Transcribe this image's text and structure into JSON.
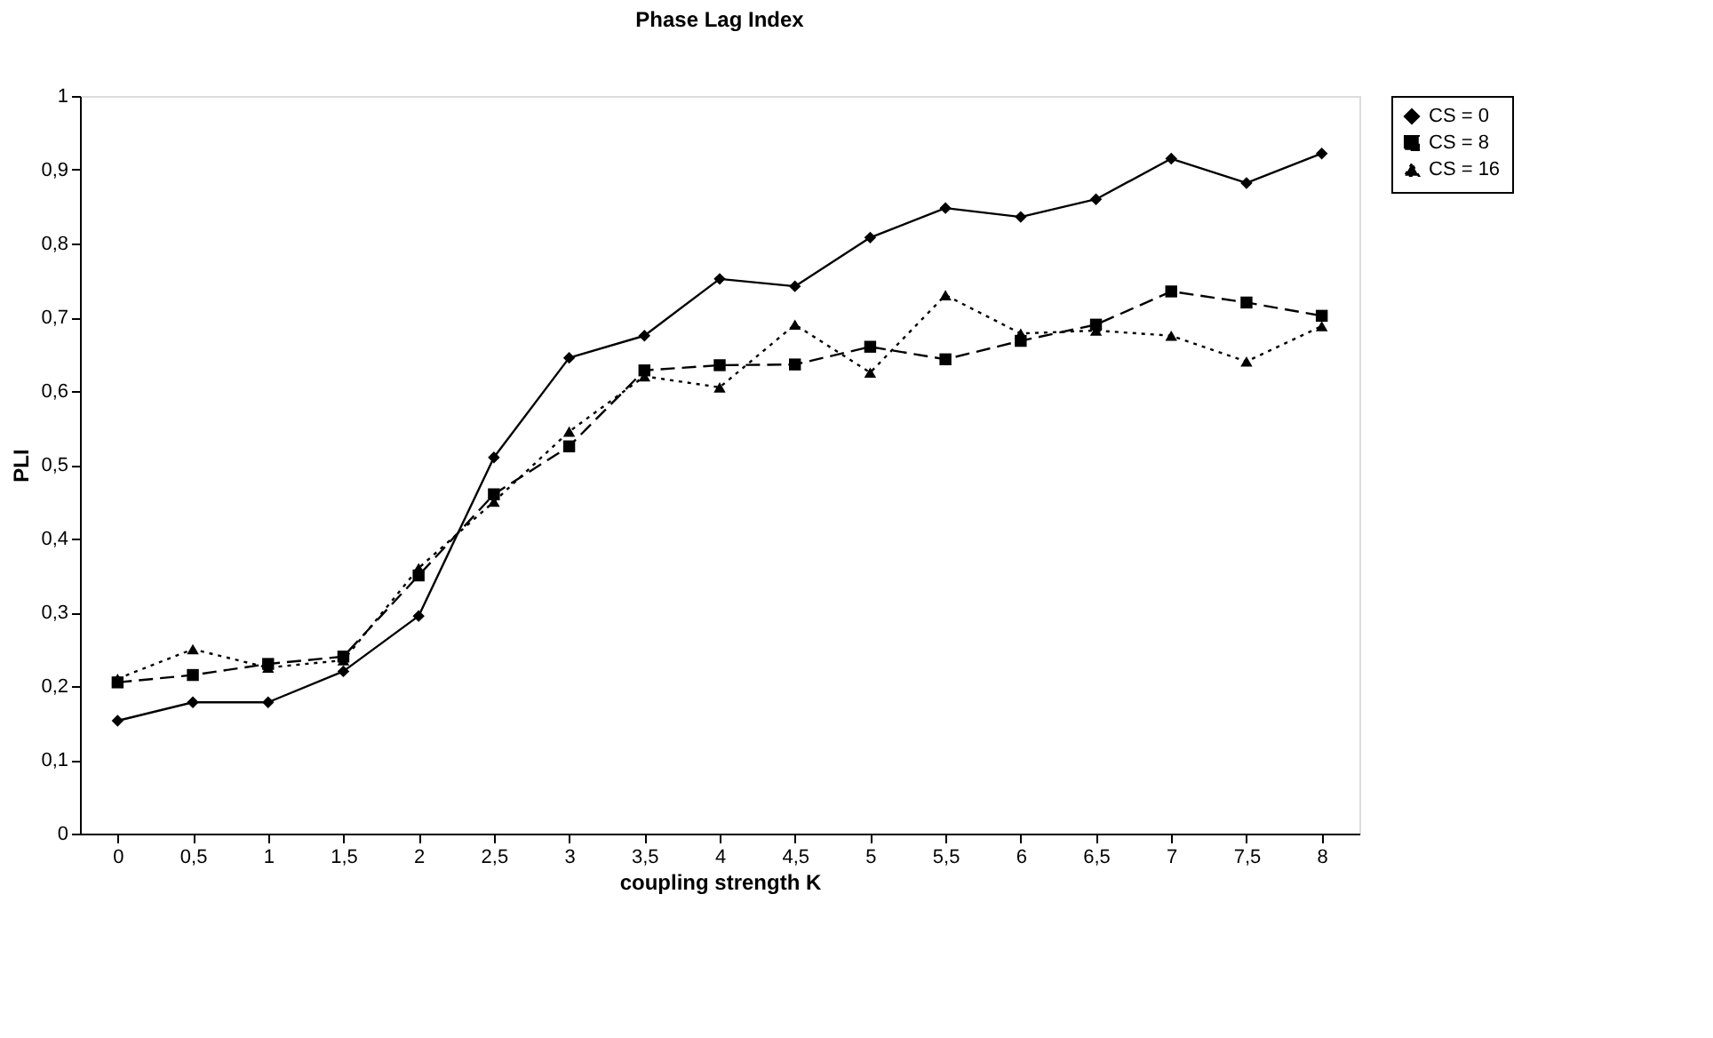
{
  "chart_data": {
    "type": "line",
    "title": "Phase Lag Index",
    "xlabel": "coupling strength K",
    "ylabel": "PLI",
    "categories": [
      "0",
      "0,5",
      "1",
      "1,5",
      "2",
      "2,5",
      "3",
      "3,5",
      "4",
      "4,5",
      "5",
      "5,5",
      "6",
      "6,5",
      "7",
      "7,5",
      "8"
    ],
    "series": [
      {
        "name": "CS = 0",
        "color": "#000000",
        "marker": "diamond",
        "line_style": "solid",
        "values": [
          0.153,
          0.178,
          0.178,
          0.22,
          0.295,
          0.51,
          0.645,
          0.675,
          0.752,
          0.742,
          0.808,
          0.848,
          0.836,
          0.86,
          0.915,
          0.882,
          0.922
        ]
      },
      {
        "name": "CS = 8",
        "color": "#000000",
        "marker": "square",
        "line_style": "dashed",
        "values": [
          0.205,
          0.215,
          0.23,
          0.24,
          0.35,
          0.46,
          0.525,
          0.628,
          0.635,
          0.636,
          0.66,
          0.643,
          0.668,
          0.69,
          0.735,
          0.72,
          0.702
        ]
      },
      {
        "name": "CS = 16",
        "color": "#000000",
        "marker": "triangle",
        "line_style": "dotted",
        "values": [
          0.21,
          0.25,
          0.225,
          0.235,
          0.36,
          0.45,
          0.545,
          0.62,
          0.605,
          0.69,
          0.625,
          0.73,
          0.678,
          0.682,
          0.675,
          0.64,
          0.688
        ]
      }
    ],
    "ylim": [
      0,
      1
    ],
    "yticks": [
      0,
      {
        "value": 0.1,
        "label": "0,1"
      },
      {
        "value": 0.2,
        "label": "0,2"
      },
      {
        "value": 0.3,
        "label": "0,3"
      },
      {
        "value": 0.4,
        "label": "0,4"
      },
      {
        "value": 0.5,
        "label": "0,5"
      },
      {
        "value": 0.6,
        "label": "0,6"
      },
      {
        "value": 0.7,
        "label": "0,7"
      },
      {
        "value": 0.8,
        "label": "0,8"
      },
      {
        "value": 0.9,
        "label": "0,9"
      },
      1
    ],
    "grid": false,
    "legend": "right"
  }
}
